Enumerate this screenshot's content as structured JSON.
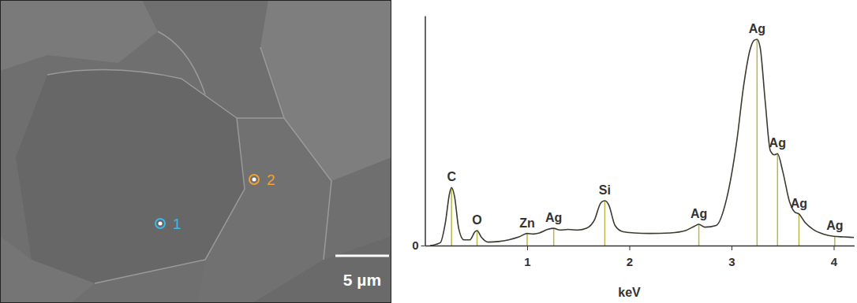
{
  "chart_data": {
    "type": "line",
    "x_label": "keV",
    "color": "#3a3a30",
    "x": [
      0.05,
      0.15,
      0.2,
      0.24,
      0.26,
      0.29,
      0.33,
      0.38,
      0.44,
      0.49,
      0.51,
      0.55,
      0.62,
      0.72,
      0.82,
      0.92,
      1.0,
      1.06,
      1.12,
      1.2,
      1.26,
      1.32,
      1.4,
      1.5,
      1.58,
      1.66,
      1.72,
      1.76,
      1.8,
      1.86,
      1.94,
      2.05,
      2.2,
      2.4,
      2.55,
      2.64,
      2.68,
      2.74,
      2.85,
      2.95,
      3.05,
      3.12,
      3.18,
      3.22,
      3.25,
      3.28,
      3.33,
      3.38,
      3.42,
      3.45,
      3.5,
      3.57,
      3.62,
      3.66,
      3.72,
      3.8,
      3.9,
      4.0,
      4.1,
      4.2
    ],
    "values": [
      0.0,
      0.05,
      0.4,
      0.9,
      1.01,
      0.85,
      0.3,
      0.1,
      0.1,
      0.24,
      0.26,
      0.15,
      0.06,
      0.07,
      0.1,
      0.15,
      0.21,
      0.2,
      0.22,
      0.28,
      0.3,
      0.27,
      0.28,
      0.27,
      0.3,
      0.45,
      0.74,
      0.78,
      0.7,
      0.35,
      0.24,
      0.22,
      0.21,
      0.22,
      0.26,
      0.34,
      0.37,
      0.32,
      0.35,
      0.8,
      1.8,
      2.8,
      3.4,
      3.57,
      3.59,
      3.45,
      2.5,
      1.65,
      1.58,
      1.6,
      1.3,
      0.75,
      0.58,
      0.55,
      0.4,
      0.28,
      0.2,
      0.16,
      0.15,
      0.14
    ],
    "xlim": [
      0,
      4.2
    ],
    "xticks": [
      1,
      2,
      3,
      4
    ],
    "ylim": [
      0,
      4
    ],
    "yticks": [
      0
    ],
    "peaks": {
      "color": "#b8b848",
      "labels": [
        "C",
        "O",
        "Zn",
        "Ag",
        "Si",
        "Ag",
        "Ag",
        "Ag",
        "Ag",
        "Ag"
      ],
      "x": [
        0.26,
        0.51,
        1.0,
        1.26,
        1.76,
        2.68,
        3.25,
        3.45,
        3.66,
        4.01
      ],
      "values": [
        1.01,
        0.26,
        0.21,
        0.3,
        0.78,
        0.37,
        3.59,
        1.6,
        0.55,
        0.16
      ]
    }
  },
  "micrograph": {
    "markers": [
      {
        "label": "1",
        "color": "#3fb6e8"
      },
      {
        "label": "2",
        "color": "#f0a030"
      }
    ],
    "scale_bar": "5 µm"
  }
}
